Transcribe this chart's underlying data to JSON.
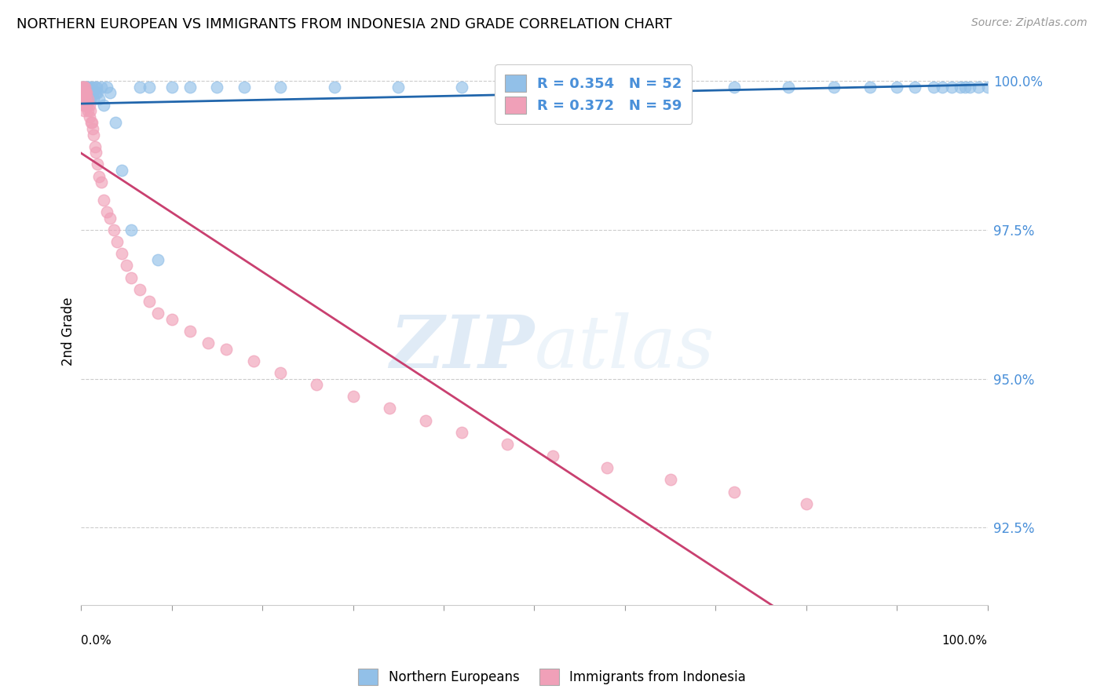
{
  "title": "NORTHERN EUROPEAN VS IMMIGRANTS FROM INDONESIA 2ND GRADE CORRELATION CHART",
  "source": "Source: ZipAtlas.com",
  "ylabel": "2nd Grade",
  "xlim": [
    0.0,
    1.0
  ],
  "ylim": [
    0.912,
    1.004
  ],
  "yticks": [
    0.925,
    0.95,
    0.975,
    1.0
  ],
  "ytick_labels": [
    "92.5%",
    "95.0%",
    "97.5%",
    "100.0%"
  ],
  "blue_label": "Northern Europeans",
  "pink_label": "Immigrants from Indonesia",
  "blue_R": 0.354,
  "blue_N": 52,
  "pink_R": 0.372,
  "pink_N": 59,
  "legend_text_color": "#4a90d9",
  "blue_color": "#92c0e8",
  "pink_color": "#f0a0b8",
  "blue_line_color": "#2166ac",
  "pink_line_color": "#c94070",
  "watermark_zip": "ZIP",
  "watermark_atlas": "atlas",
  "blue_x": [
    0.003,
    0.004,
    0.005,
    0.006,
    0.007,
    0.008,
    0.009,
    0.01,
    0.011,
    0.012,
    0.013,
    0.014,
    0.015,
    0.016,
    0.017,
    0.018,
    0.02,
    0.022,
    0.025,
    0.028,
    0.032,
    0.038,
    0.045,
    0.055,
    0.065,
    0.075,
    0.085,
    0.1,
    0.12,
    0.15,
    0.18,
    0.22,
    0.28,
    0.35,
    0.42,
    0.5,
    0.58,
    0.65,
    0.72,
    0.78,
    0.83,
    0.87,
    0.9,
    0.92,
    0.94,
    0.95,
    0.96,
    0.97,
    0.975,
    0.98,
    0.99,
    1.0
  ],
  "blue_y": [
    0.999,
    0.998,
    0.999,
    0.997,
    0.999,
    0.998,
    0.999,
    0.997,
    0.998,
    0.999,
    0.998,
    0.997,
    0.999,
    0.998,
    0.999,
    0.998,
    0.997,
    0.999,
    0.996,
    0.999,
    0.998,
    0.993,
    0.985,
    0.975,
    0.999,
    0.999,
    0.97,
    0.999,
    0.999,
    0.999,
    0.999,
    0.999,
    0.999,
    0.999,
    0.999,
    0.999,
    0.999,
    0.999,
    0.999,
    0.999,
    0.999,
    0.999,
    0.999,
    0.999,
    0.999,
    0.999,
    0.999,
    0.999,
    0.999,
    0.999,
    0.999,
    0.999
  ],
  "pink_x": [
    0.001,
    0.001,
    0.002,
    0.002,
    0.002,
    0.003,
    0.003,
    0.003,
    0.003,
    0.004,
    0.004,
    0.004,
    0.005,
    0.005,
    0.006,
    0.006,
    0.007,
    0.008,
    0.008,
    0.009,
    0.009,
    0.01,
    0.011,
    0.012,
    0.013,
    0.014,
    0.015,
    0.016,
    0.018,
    0.02,
    0.022,
    0.025,
    0.028,
    0.032,
    0.036,
    0.04,
    0.045,
    0.05,
    0.055,
    0.065,
    0.075,
    0.085,
    0.1,
    0.12,
    0.14,
    0.16,
    0.19,
    0.22,
    0.26,
    0.3,
    0.34,
    0.38,
    0.42,
    0.47,
    0.52,
    0.58,
    0.65,
    0.72,
    0.8
  ],
  "pink_y": [
    0.999,
    0.997,
    0.999,
    0.998,
    0.996,
    0.999,
    0.998,
    0.997,
    0.995,
    0.999,
    0.998,
    0.996,
    0.998,
    0.997,
    0.998,
    0.996,
    0.996,
    0.997,
    0.995,
    0.996,
    0.994,
    0.995,
    0.993,
    0.993,
    0.992,
    0.991,
    0.989,
    0.988,
    0.986,
    0.984,
    0.983,
    0.98,
    0.978,
    0.977,
    0.975,
    0.973,
    0.971,
    0.969,
    0.967,
    0.965,
    0.963,
    0.961,
    0.96,
    0.958,
    0.956,
    0.955,
    0.953,
    0.951,
    0.949,
    0.947,
    0.945,
    0.943,
    0.941,
    0.939,
    0.937,
    0.935,
    0.933,
    0.931,
    0.929
  ]
}
